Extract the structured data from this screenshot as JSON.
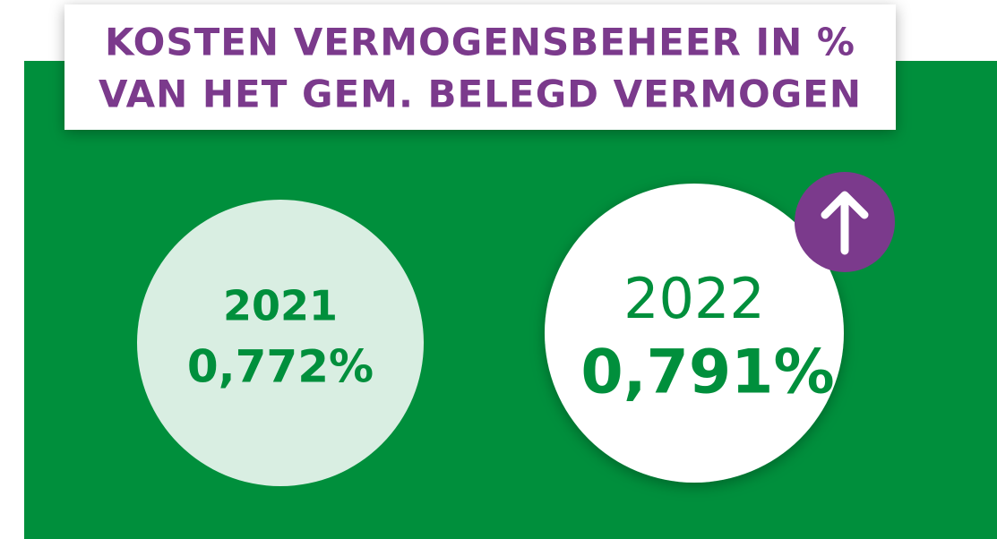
{
  "header": {
    "title_lines": [
      "KOSTEN VERMOGENSBEHEER IN %",
      "VAN HET GEM. BELEGD VERMOGEN"
    ]
  },
  "items": [
    {
      "year": "2021",
      "value": "0,772%"
    },
    {
      "year": "2022",
      "value": "0,791%"
    }
  ]
}
